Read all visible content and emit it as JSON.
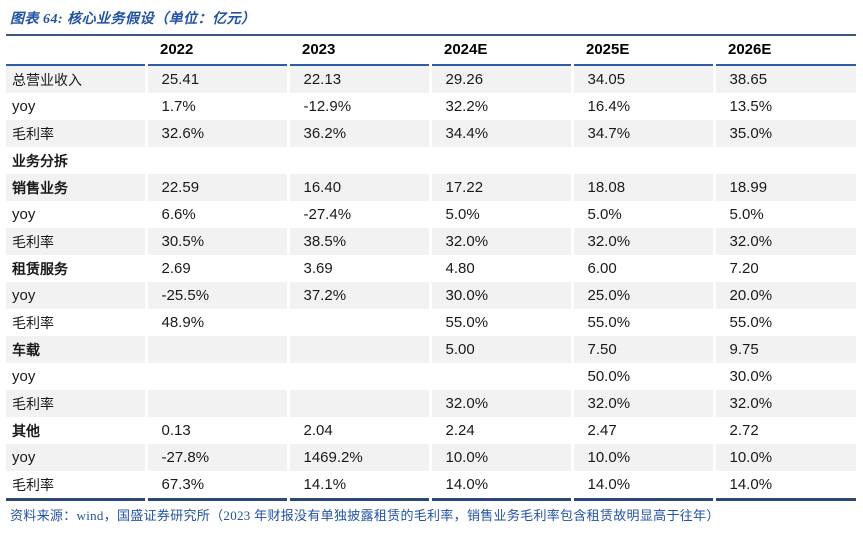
{
  "title": "图表 64: 核心业务假设（单位：亿元）",
  "footer": "资料来源：wind，国盛证券研究所（2023 年财报没有单独披露租赁的毛利率，销售业务毛利率包含租赁故明显高于往年）",
  "colors": {
    "title_blue": "#2353A4",
    "header_rule_blue": "#2E5DA6",
    "table_top_rule": "#3D5A86",
    "table_bottom_rule": "#2B4976",
    "stripe_gray": "#F2F2F2",
    "text_black": "#1a1a1a"
  },
  "chart_data": {
    "type": "table",
    "columns": [
      "",
      "2022",
      "2023",
      "2024E",
      "2025E",
      "2026E"
    ],
    "rows": [
      {
        "label": "总营业收入",
        "bold": false,
        "values": [
          "25.41",
          "22.13",
          "29.26",
          "34.05",
          "38.65"
        ]
      },
      {
        "label": "yoy",
        "bold": false,
        "values": [
          "1.7%",
          "-12.9%",
          "32.2%",
          "16.4%",
          "13.5%"
        ]
      },
      {
        "label": "毛利率",
        "bold": false,
        "values": [
          "32.6%",
          "36.2%",
          "34.4%",
          "34.7%",
          "35.0%"
        ]
      },
      {
        "label": "业务分拆",
        "bold": true,
        "values": [
          "",
          "",
          "",
          "",
          ""
        ]
      },
      {
        "label": "销售业务",
        "bold": true,
        "values": [
          "22.59",
          "16.40",
          "17.22",
          "18.08",
          "18.99"
        ]
      },
      {
        "label": "yoy",
        "bold": false,
        "values": [
          "6.6%",
          "-27.4%",
          "5.0%",
          "5.0%",
          "5.0%"
        ]
      },
      {
        "label": "毛利率",
        "bold": false,
        "values": [
          "30.5%",
          "38.5%",
          "32.0%",
          "32.0%",
          "32.0%"
        ]
      },
      {
        "label": "租赁服务",
        "bold": true,
        "values": [
          "2.69",
          "3.69",
          "4.80",
          "6.00",
          "7.20"
        ]
      },
      {
        "label": "yoy",
        "bold": false,
        "values": [
          "-25.5%",
          "37.2%",
          "30.0%",
          "25.0%",
          "20.0%"
        ]
      },
      {
        "label": "毛利率",
        "bold": false,
        "values": [
          "48.9%",
          "",
          "55.0%",
          "55.0%",
          "55.0%"
        ]
      },
      {
        "label": "车载",
        "bold": true,
        "values": [
          "",
          "",
          "5.00",
          "7.50",
          "9.75"
        ]
      },
      {
        "label": "yoy",
        "bold": false,
        "values": [
          "",
          "",
          "",
          "50.0%",
          "30.0%"
        ]
      },
      {
        "label": "毛利率",
        "bold": false,
        "values": [
          "",
          "",
          "32.0%",
          "32.0%",
          "32.0%"
        ]
      },
      {
        "label": "其他",
        "bold": true,
        "values": [
          "0.13",
          "2.04",
          "2.24",
          "2.47",
          "2.72"
        ]
      },
      {
        "label": "yoy",
        "bold": false,
        "values": [
          "-27.8%",
          "1469.2%",
          "10.0%",
          "10.0%",
          "10.0%"
        ]
      },
      {
        "label": "毛利率",
        "bold": false,
        "values": [
          "67.3%",
          "14.1%",
          "14.0%",
          "14.0%",
          "14.0%"
        ]
      }
    ]
  }
}
